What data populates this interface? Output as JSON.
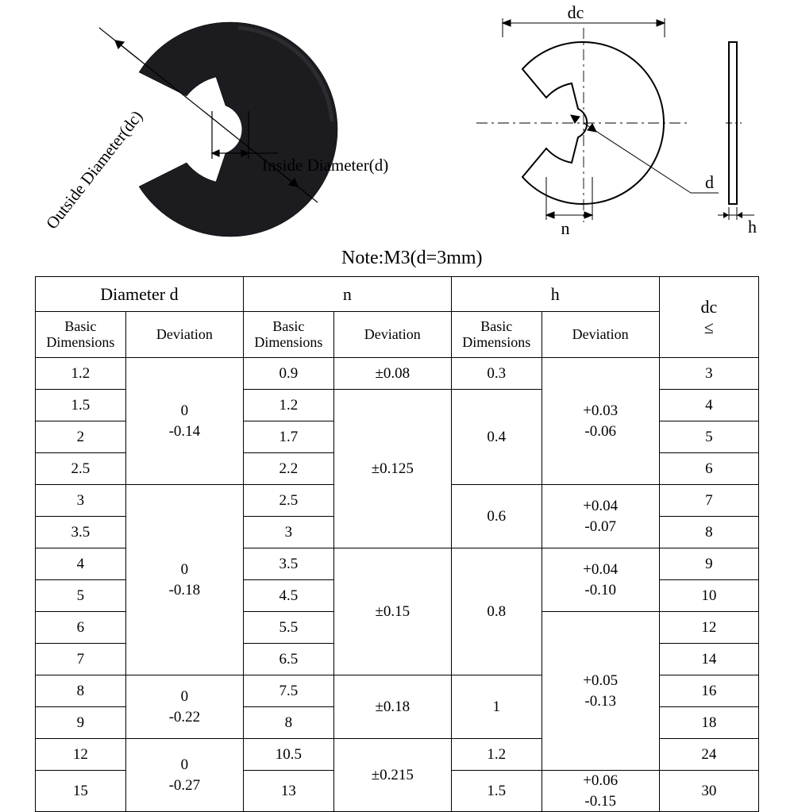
{
  "labels": {
    "outside": "Outside Diameter(dc)",
    "inside": "Inside Diameter(d)",
    "dc": "dc",
    "d": "d",
    "n": "n",
    "h": "h",
    "note": "Note:M3(d=3mm)"
  },
  "table": {
    "headers": {
      "diameter_d": "Diameter    d",
      "n": "n",
      "h": "h",
      "dc": "dc\n≤",
      "basic": "Basic\nDimensions",
      "deviation": "Deviation"
    },
    "rows": [
      {
        "d_bd": "1.2",
        "n_bd": "0.9",
        "h_bd": "0.3",
        "dc": "3"
      },
      {
        "d_bd": "1.5",
        "n_bd": "1.2",
        "dc": "4"
      },
      {
        "d_bd": "2",
        "n_bd": "1.7",
        "dc": "5"
      },
      {
        "d_bd": "2.5",
        "n_bd": "2.2",
        "dc": "6"
      },
      {
        "d_bd": "3",
        "n_bd": "2.5",
        "dc": "7"
      },
      {
        "d_bd": "3.5",
        "n_bd": "3",
        "dc": "8"
      },
      {
        "d_bd": "4",
        "n_bd": "3.5",
        "dc": "9"
      },
      {
        "d_bd": "5",
        "n_bd": "4.5",
        "dc": "10"
      },
      {
        "d_bd": "6",
        "n_bd": "5.5",
        "dc": "12"
      },
      {
        "d_bd": "7",
        "n_bd": "6.5",
        "dc": "14"
      },
      {
        "d_bd": "8",
        "n_bd": "7.5",
        "dc": "16"
      },
      {
        "d_bd": "9",
        "n_bd": "8",
        "dc": "18"
      },
      {
        "d_bd": "12",
        "n_bd": "10.5",
        "dc": "24"
      },
      {
        "d_bd": "15",
        "n_bd": "13",
        "dc": "30"
      }
    ],
    "d_dev": [
      {
        "span": 4,
        "val": "0\n-0.14"
      },
      {
        "span": 6,
        "val": "0\n-0.18"
      },
      {
        "span": 2,
        "val": "0\n-0.22"
      },
      {
        "span": 2,
        "val": "0\n-0.27"
      }
    ],
    "n_dev": [
      {
        "span": 1,
        "val": "±0.08"
      },
      {
        "span": 5,
        "val": "±0.125"
      },
      {
        "span": 4,
        "val": "±0.15"
      },
      {
        "span": 2,
        "val": "±0.18"
      },
      {
        "span": 2,
        "val": "±0.215"
      }
    ],
    "h_bd": [
      {
        "span": 1,
        "val": "0.3"
      },
      {
        "span": 3,
        "val": "0.4"
      },
      {
        "span": 2,
        "val": "0.6"
      },
      {
        "span": 4,
        "val": "0.8"
      },
      {
        "span": 2,
        "val": "1"
      },
      {
        "span": 1,
        "val": "1.2"
      },
      {
        "span": 1,
        "val": "1.5"
      }
    ],
    "h_dev": [
      {
        "span": 4,
        "val": "+0.03\n-0.06"
      },
      {
        "span": 2,
        "val": "+0.04\n-0.07"
      },
      {
        "span": 2,
        "val": "+0.04\n-0.10"
      },
      {
        "span": 5,
        "val": "+0.05\n-0.13"
      },
      {
        "span": 1,
        "val": "+0.06\n-0.15"
      }
    ]
  },
  "colors": {
    "photo_fill": "#18171a",
    "line": "#000000",
    "bg": "#ffffff"
  }
}
